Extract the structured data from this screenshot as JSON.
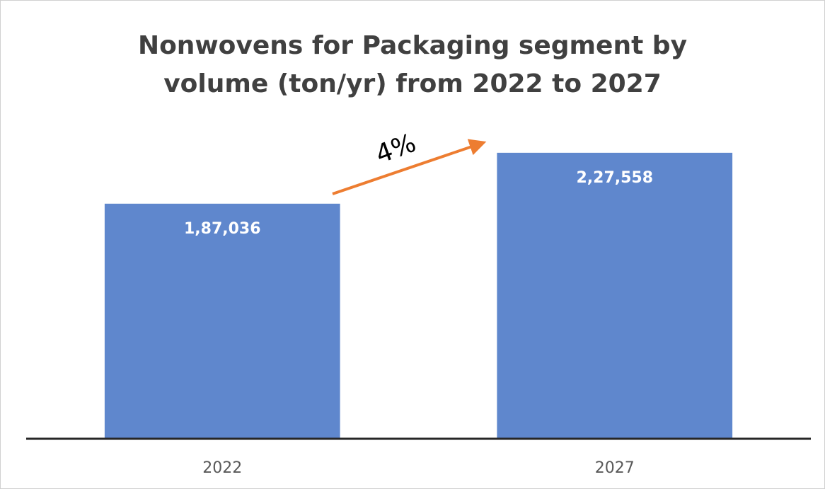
{
  "chart_data": {
    "type": "bar",
    "title": "Nonwovens for Packaging segment by volume (ton/yr) from 2022 to 2027",
    "categories": [
      "2022",
      "2027"
    ],
    "values": [
      187036,
      227558
    ],
    "value_labels": [
      "1,87,036",
      "2,27,558"
    ],
    "color": "#5f87cd",
    "ylim": [
      0,
      250000
    ],
    "annotation": "4%"
  }
}
